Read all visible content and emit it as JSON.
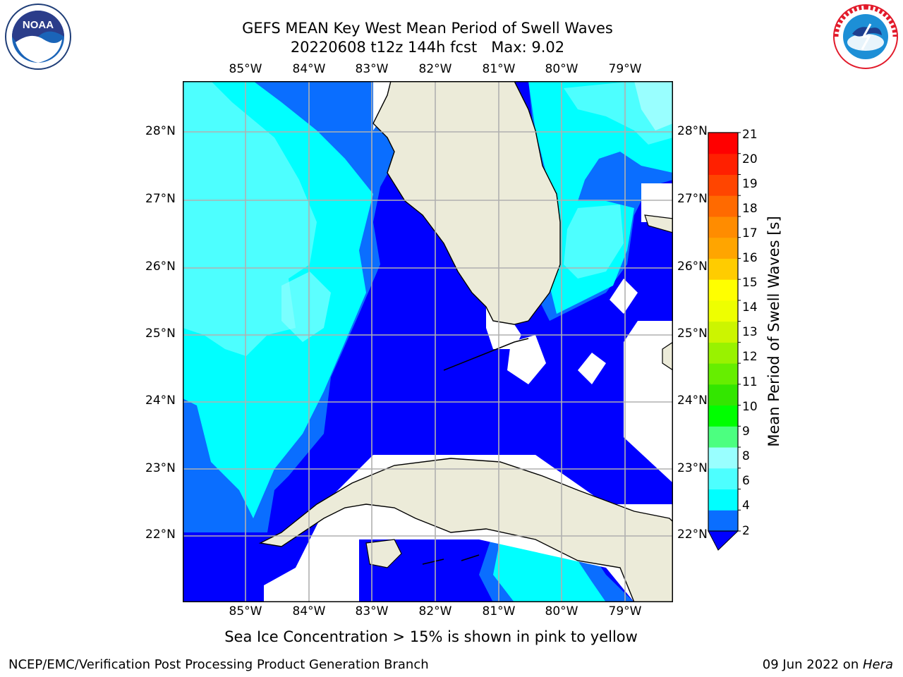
{
  "header": {
    "title_line1": "GEFS MEAN Key West Mean Period of Swell Waves",
    "title_line2": "20220608 t12z 144h fcst   Max: 9.02"
  },
  "logos": {
    "left": {
      "icon": "noaa-logo",
      "text": "NOAA"
    },
    "right": {
      "icon": "nws-logo",
      "text": "NATIONAL WEATHER SERVICE"
    }
  },
  "map": {
    "lon_labels": [
      "85°W",
      "84°W",
      "83°W",
      "82°W",
      "81°W",
      "80°W",
      "79°W"
    ],
    "lat_labels": [
      "28°N",
      "27°N",
      "26°N",
      "25°N",
      "24°N",
      "23°N",
      "22°N"
    ],
    "colors": {
      "band_2_4": "#0000ff",
      "band_4_6": "#0a6eff",
      "band_6_7": "#00ffff",
      "band_7_8": "#4dffff",
      "band_8_9": "#99ffff",
      "land": "#ecebd9",
      "missing": "#ffffff",
      "grid": "#b0b0b0"
    }
  },
  "colorbar": {
    "label": "Mean Period of Swell Waves [s]",
    "ticks": [
      "21",
      "20",
      "19",
      "18",
      "17",
      "16",
      "15",
      "14",
      "13",
      "12",
      "11",
      "10",
      "9",
      "8",
      "6",
      "4",
      "2"
    ],
    "colors_bottom_to_top": [
      "#0a6eff",
      "#00ffff",
      "#4dffff",
      "#99ffff",
      "#4cff80",
      "#00ff00",
      "#33e600",
      "#66ee00",
      "#99f200",
      "#ccf500",
      "#eeff00",
      "#ffff00",
      "#ffcc00",
      "#ffa500",
      "#ff8c00",
      "#ff6a00",
      "#ff4500",
      "#ff2000",
      "#ff0000"
    ],
    "extend_color": "#0000ff"
  },
  "subtitle": "Sea Ice Concentration > 15% is shown in pink to yellow",
  "footer": {
    "left": "NCEP/EMC/Verification Post Processing Product Generation Branch",
    "date": "09 Jun 2022 on ",
    "host": "Hera"
  }
}
